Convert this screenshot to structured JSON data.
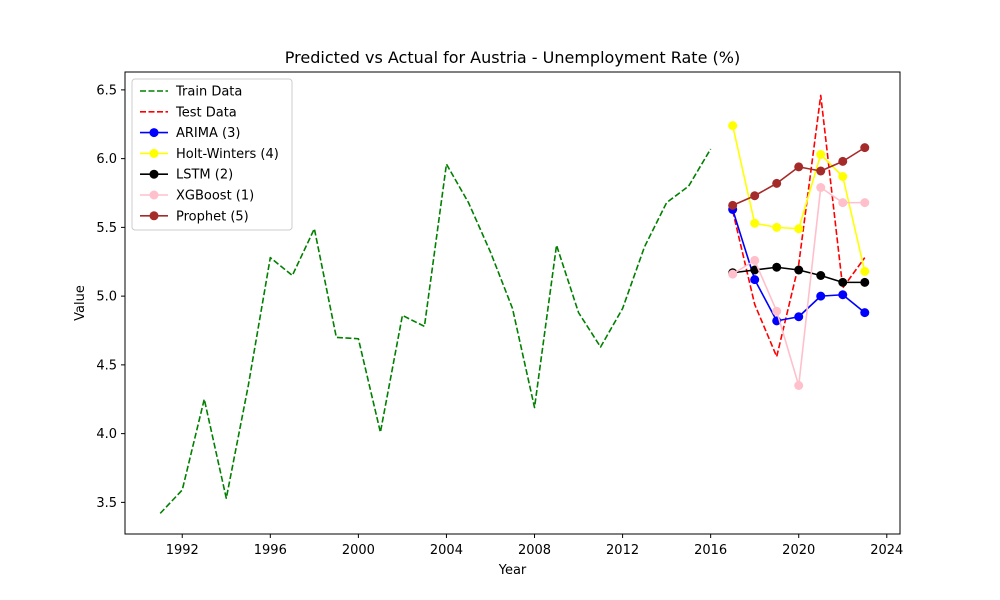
{
  "chart_data": {
    "type": "line",
    "title": "Predicted vs Actual for Austria - Unemployment Rate (%)",
    "xlabel": "Year",
    "ylabel": "Value",
    "xlim": [
      1989.4,
      2024.6
    ],
    "ylim": [
      3.27,
      6.63
    ],
    "xticks": [
      1992,
      1996,
      2000,
      2004,
      2008,
      2012,
      2016,
      2020,
      2024
    ],
    "xtick_labels": [
      "1992",
      "1996",
      "2000",
      "2004",
      "2008",
      "2012",
      "2016",
      "2020",
      "2024"
    ],
    "yticks": [
      3.5,
      4.0,
      4.5,
      5.0,
      5.5,
      6.0,
      6.5
    ],
    "ytick_labels": [
      "3.5",
      "4.0",
      "4.5",
      "5.0",
      "5.5",
      "6.0",
      "6.5"
    ],
    "grid": false,
    "legend_position": "upper-left",
    "series": [
      {
        "name": "Train Data",
        "color": "#008000",
        "style": "dashed",
        "marker": false,
        "x": [
          1991,
          1992,
          1993,
          1994,
          1995,
          1996,
          1997,
          1998,
          1999,
          2000,
          2001,
          2002,
          2003,
          2004,
          2005,
          2006,
          2007,
          2008,
          2009,
          2010,
          2011,
          2012,
          2013,
          2014,
          2015,
          2016
        ],
        "y": [
          3.42,
          3.59,
          4.25,
          3.53,
          4.35,
          5.28,
          5.15,
          5.49,
          4.7,
          4.69,
          4.01,
          4.86,
          4.78,
          5.96,
          5.68,
          5.32,
          4.91,
          4.19,
          5.37,
          4.88,
          4.63,
          4.91,
          5.36,
          5.68,
          5.8,
          6.07
        ]
      },
      {
        "name": "Test Data",
        "color": "#ff0000",
        "style": "dashed",
        "marker": false,
        "x": [
          2017,
          2018,
          2019,
          2020,
          2021,
          2022,
          2023
        ],
        "y": [
          5.62,
          4.94,
          4.56,
          5.23,
          6.46,
          5.06,
          5.28
        ]
      },
      {
        "name": "ARIMA (3)",
        "color": "#0000ff",
        "style": "solid",
        "marker": true,
        "x": [
          2017,
          2018,
          2019,
          2020,
          2021,
          2022,
          2023
        ],
        "y": [
          5.63,
          5.12,
          4.82,
          4.85,
          5.0,
          5.01,
          4.88
        ]
      },
      {
        "name": "Holt-Winters (4)",
        "color": "#ffff00",
        "style": "solid",
        "marker": true,
        "x": [
          2017,
          2018,
          2019,
          2020,
          2021,
          2022,
          2023
        ],
        "y": [
          6.24,
          5.53,
          5.5,
          5.49,
          6.03,
          5.87,
          5.18
        ]
      },
      {
        "name": "LSTM (2)",
        "color": "#000000",
        "style": "solid",
        "marker": true,
        "x": [
          2017,
          2018,
          2019,
          2020,
          2021,
          2022,
          2023
        ],
        "y": [
          5.17,
          5.19,
          5.21,
          5.19,
          5.15,
          5.1,
          5.1
        ]
      },
      {
        "name": "XGBoost (1)",
        "color": "#ffc0cb",
        "style": "solid",
        "marker": true,
        "x": [
          2017,
          2018,
          2019,
          2020,
          2021,
          2022,
          2023
        ],
        "y": [
          5.16,
          5.26,
          4.89,
          4.35,
          5.79,
          5.68,
          5.68
        ]
      },
      {
        "name": "Prophet (5)",
        "color": "#a52a2a",
        "style": "solid",
        "marker": true,
        "x": [
          2017,
          2018,
          2019,
          2020,
          2021,
          2022,
          2023
        ],
        "y": [
          5.66,
          5.73,
          5.82,
          5.94,
          5.91,
          5.98,
          6.08
        ]
      }
    ]
  }
}
